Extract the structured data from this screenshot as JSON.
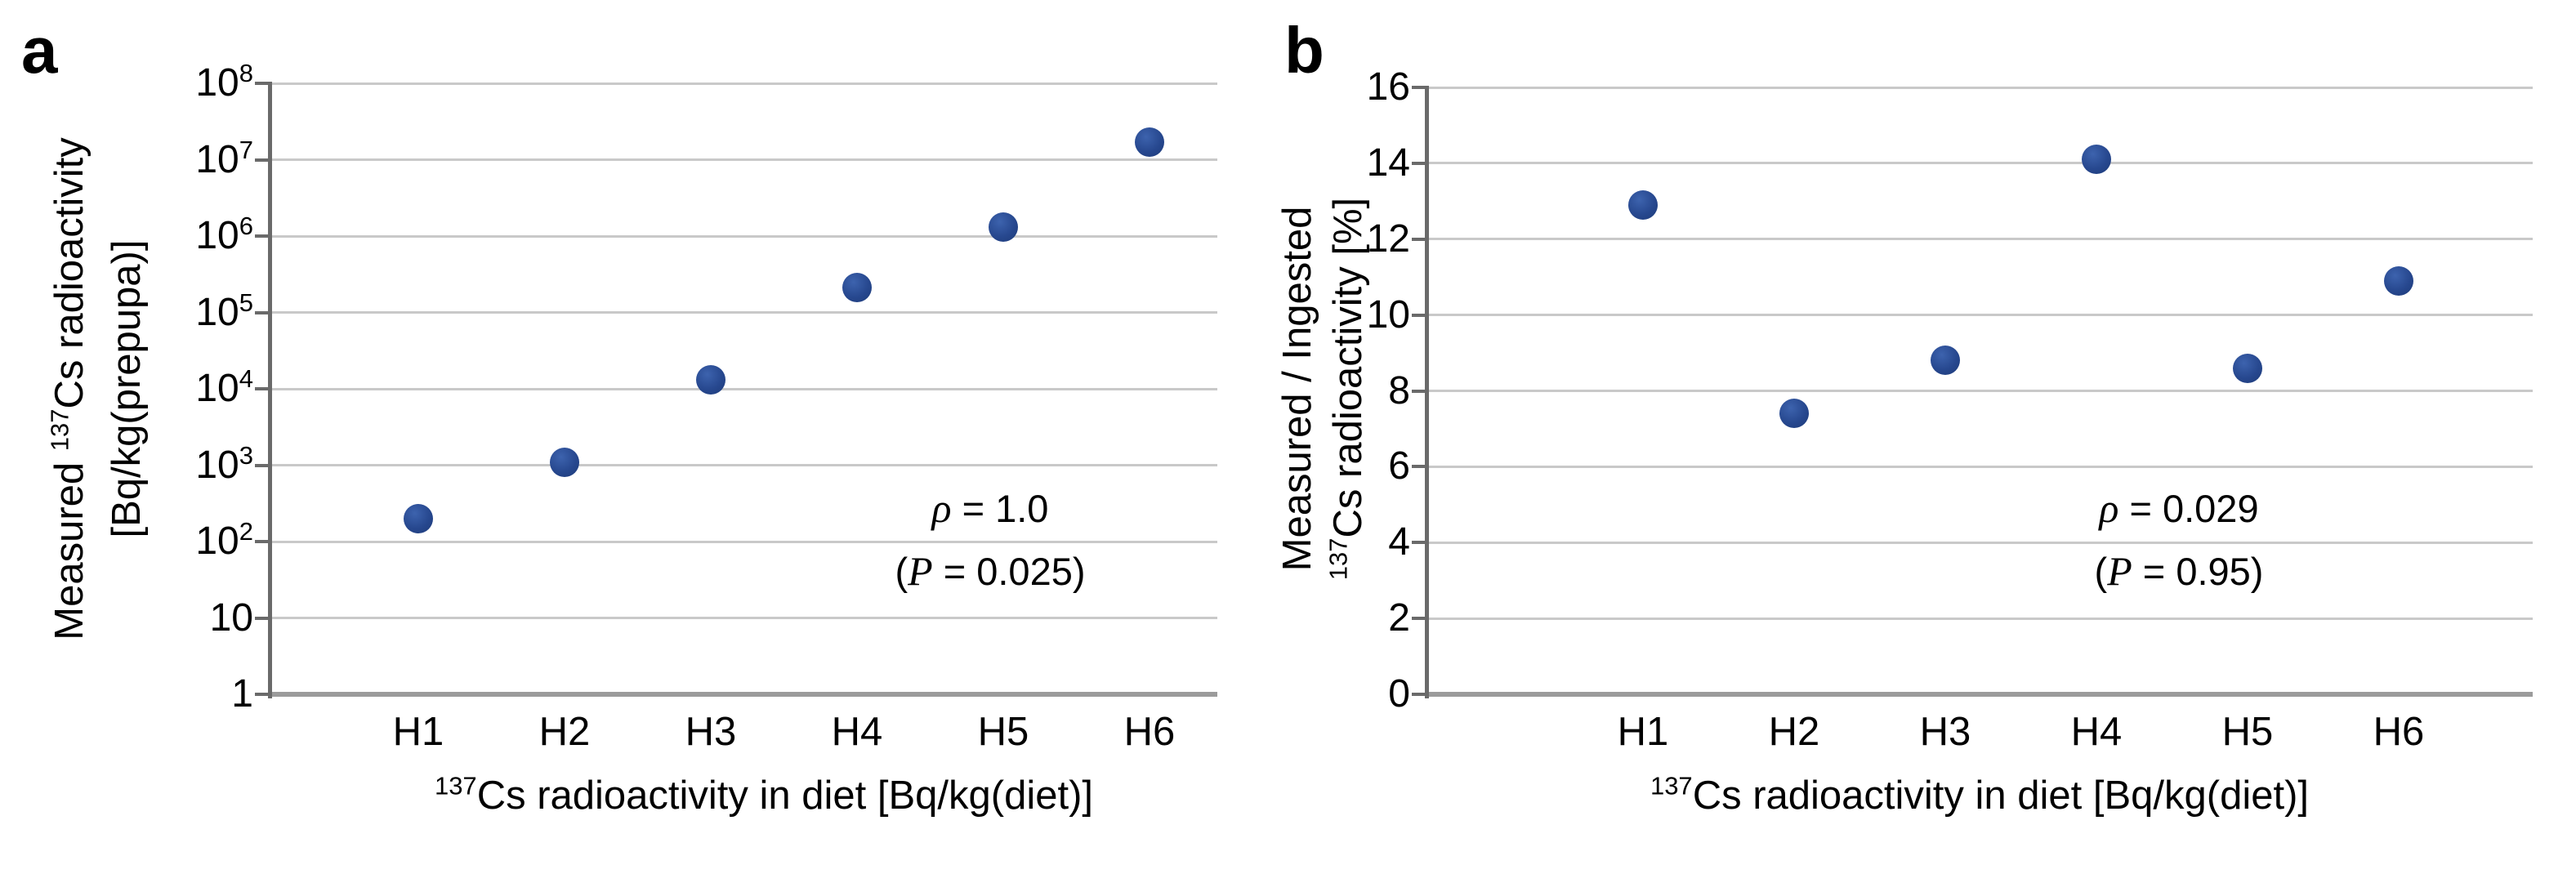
{
  "figure": {
    "background": "#ffffff",
    "marker_color": "#2a4d94",
    "gridline_color": "#c9c9c9",
    "axis_color": "#6a6a6a",
    "baseline_color": "#9b9b9b"
  },
  "panels": [
    {
      "letter": "a",
      "ylabel": {
        "l1pre": "Measured ",
        "l1sup": "137",
        "l1post": "Cs radioactivity",
        "l2pre": "",
        "l2sup": "",
        "l2post": "[Bq/kg(prepupa)]"
      },
      "xtitle": {
        "sup": "137",
        "text": "Cs radioactivity in diet [Bq/kg(diet)]"
      },
      "annotation": {
        "l1sym": "ρ",
        "l1rest": " = 1.0",
        "l2pre": "(",
        "l2sym": "P",
        "l2rest": " = 0.025)"
      }
    },
    {
      "letter": "b",
      "ylabel": {
        "l1pre": "Measured / Ingested",
        "l1sup": "",
        "l1post": "",
        "l2pre": "",
        "l2sup": "137",
        "l2post": "Cs radioactivity [%]"
      },
      "xtitle": {
        "sup": "137",
        "text": "Cs radioactivity in diet [Bq/kg(diet)]"
      },
      "annotation": {
        "l1sym": "ρ",
        "l1rest": " = 0.029",
        "l2pre": "(",
        "l2sym": "P",
        "l2rest": " = 0.95)"
      }
    }
  ],
  "chart_data": [
    {
      "type": "scatter",
      "panel": "a",
      "categories": [
        "H1",
        "H2",
        "H3",
        "H4",
        "H5",
        "H6"
      ],
      "values": [
        200,
        1100,
        13000,
        210000,
        1300000,
        17000000
      ],
      "xlabel": "137Cs radioactivity in diet [Bq/kg(diet)]",
      "ylabel": "Measured 137Cs radioactivity [Bq/kg(prepupa)]",
      "yscale": "log",
      "ylim": [
        1,
        100000000
      ],
      "ytick_labels": [
        "10^8",
        "10^7",
        "10^6",
        "10^5",
        "10^4",
        "10^3",
        "10^2",
        "10",
        "1"
      ],
      "grid": true,
      "legend": false,
      "annotation_lines": [
        "ρ = 1.0",
        "(P = 0.025)"
      ]
    },
    {
      "type": "scatter",
      "panel": "b",
      "categories": [
        "H1",
        "H2",
        "H3",
        "H4",
        "H5",
        "H6"
      ],
      "values": [
        12.9,
        7.4,
        8.8,
        14.1,
        8.6,
        10.9
      ],
      "xlabel": "137Cs radioactivity in diet [Bq/kg(diet)]",
      "ylabel": "Measured / Ingested 137Cs radioactivity [%]",
      "yscale": "linear",
      "ylim": [
        0,
        16
      ],
      "ytick_labels": [
        "16",
        "14",
        "12",
        "10",
        "8",
        "6",
        "4",
        "2",
        "0"
      ],
      "grid": true,
      "legend": false,
      "annotation_lines": [
        "ρ = 0.029",
        "(P = 0.95)"
      ]
    }
  ]
}
